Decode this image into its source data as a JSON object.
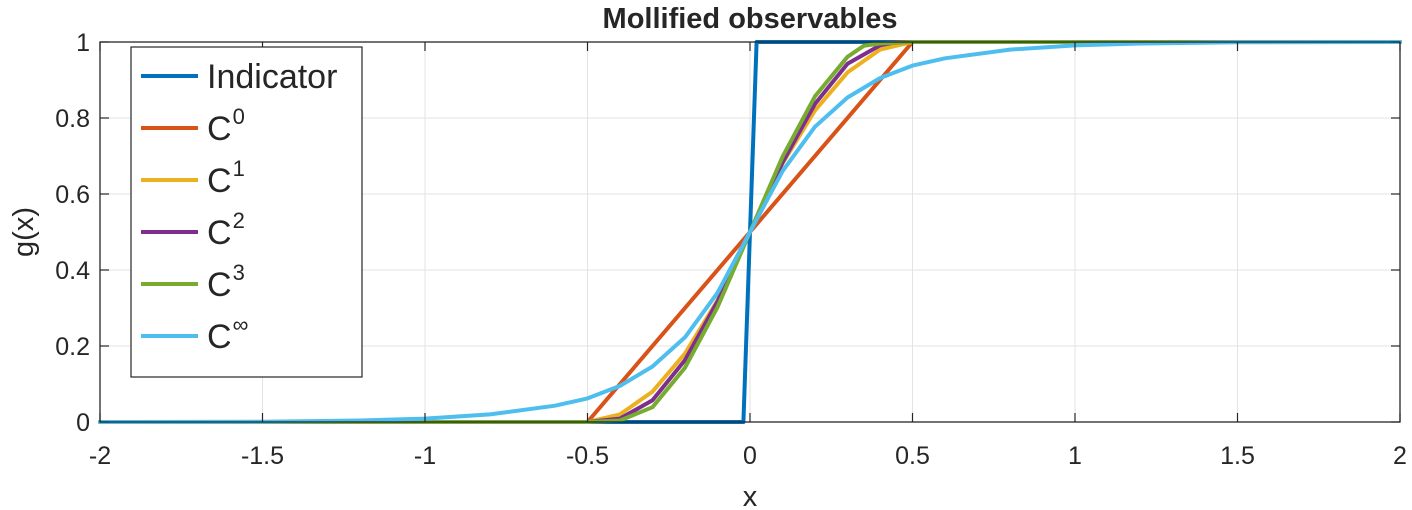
{
  "chart_data": {
    "type": "line",
    "title": "Mollified observables",
    "xlabel": "x",
    "ylabel": "g(x)",
    "xlim": [
      -2,
      2
    ],
    "ylim": [
      0,
      1
    ],
    "xticks": [
      -2,
      -1.5,
      -1,
      -0.5,
      0,
      0.5,
      1,
      1.5,
      2
    ],
    "xtick_labels": [
      "-2",
      "-1.5",
      "-1",
      "-0.5",
      "0",
      "0.5",
      "1",
      "1.5",
      "2"
    ],
    "yticks": [
      0,
      0.2,
      0.4,
      0.6,
      0.8,
      1
    ],
    "ytick_labels": [
      "0",
      "0.2",
      "0.4",
      "0.6",
      "0.8",
      "1"
    ],
    "grid": true,
    "legend_position": "top-left",
    "series": [
      {
        "name": "Indicator",
        "base": "Indicator",
        "sup": "",
        "color": "#0072BD",
        "x": [
          -2,
          -0.0202,
          0.0202,
          2
        ],
        "y": [
          0,
          0,
          1,
          1
        ]
      },
      {
        "name": "C⁰",
        "base": "C",
        "sup": "0",
        "color": "#D95319",
        "x": [
          -2,
          -0.5,
          0.5,
          2
        ],
        "y": [
          0,
          0,
          1,
          1
        ]
      },
      {
        "name": "C¹",
        "base": "C",
        "sup": "1",
        "color": "#EDB120",
        "x": [
          -2,
          -0.5,
          -0.4,
          -0.3,
          -0.2,
          -0.1,
          0,
          0.1,
          0.2,
          0.3,
          0.4,
          0.5,
          2
        ],
        "y": [
          0,
          0,
          0.02,
          0.08,
          0.18,
          0.32,
          0.5,
          0.68,
          0.82,
          0.92,
          0.98,
          1,
          1
        ]
      },
      {
        "name": "C²",
        "base": "C",
        "sup": "2",
        "color": "#7E2F8E",
        "x": [
          -2,
          -0.5,
          -0.4,
          -0.3,
          -0.2,
          -0.1,
          0,
          0.1,
          0.2,
          0.3,
          0.4,
          0.45,
          2
        ],
        "y": [
          0,
          0,
          0.009,
          0.057,
          0.163,
          0.317,
          0.5,
          0.683,
          0.837,
          0.943,
          0.991,
          1,
          1
        ]
      },
      {
        "name": "C³",
        "base": "C",
        "sup": "3",
        "color": "#77AC30",
        "x": [
          -2,
          -0.5,
          -0.4,
          -0.3,
          -0.2,
          -0.1,
          0,
          0.1,
          0.2,
          0.3,
          0.35,
          0.4,
          0.5,
          2
        ],
        "y": [
          0,
          0,
          0.004,
          0.039,
          0.143,
          0.302,
          0.5,
          0.698,
          0.857,
          0.961,
          0.99,
          0.996,
          1,
          1
        ]
      },
      {
        "name": "C∞",
        "base": "C",
        "sup": "∞",
        "color": "#4DBEEE",
        "x": [
          -2,
          -1.5,
          -1.2,
          -1,
          -0.8,
          -0.6,
          -0.5,
          -0.4,
          -0.3,
          -0.2,
          -0.1,
          0,
          0.1,
          0.2,
          0.3,
          0.4,
          0.5,
          0.6,
          0.8,
          1,
          1.2,
          1.5,
          2
        ],
        "y": [
          0,
          0.0007,
          0.004,
          0.009,
          0.02,
          0.043,
          0.062,
          0.095,
          0.146,
          0.223,
          0.34,
          0.5,
          0.66,
          0.777,
          0.854,
          0.905,
          0.938,
          0.957,
          0.98,
          0.991,
          0.996,
          0.9993,
          1
        ]
      }
    ]
  }
}
